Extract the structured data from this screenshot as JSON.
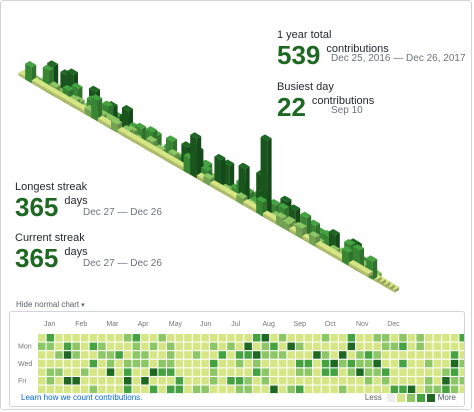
{
  "stats": {
    "year_total": {
      "label": "1 year total",
      "value": "539",
      "unit": "contributions",
      "range": "Dec 25, 2016 — Dec 26, 2017"
    },
    "busiest_day": {
      "label": "Busiest day",
      "value": "22",
      "unit": "contributions",
      "date": "Sep 10"
    },
    "longest_streak": {
      "label": "Longest streak",
      "value": "365",
      "unit": "days",
      "range": "Dec 27 — Dec 26"
    },
    "current_streak": {
      "label": "Current streak",
      "value": "365",
      "unit": "days",
      "range": "Dec 27 — Dec 26"
    }
  },
  "toggle": {
    "label": "Hide normal chart",
    "caret": "▾"
  },
  "calendar": {
    "months": [
      "Jan",
      "Feb",
      "Mar",
      "Apr",
      "May",
      "Jun",
      "Jul",
      "Aug",
      "Sep",
      "Oct",
      "Nov",
      "Dec"
    ],
    "days": [
      "Mon",
      "Wed",
      "Fri"
    ]
  },
  "footer": {
    "learn_link": "Learn how we count contributions.",
    "less": "Less",
    "more": "More"
  },
  "colors": {
    "level0": "#eeeeee",
    "level1": "#d6e685",
    "level2": "#8cc665",
    "level3": "#44a340",
    "level4": "#1e6823",
    "accent": "#1e6823",
    "link": "#0366d6"
  }
}
